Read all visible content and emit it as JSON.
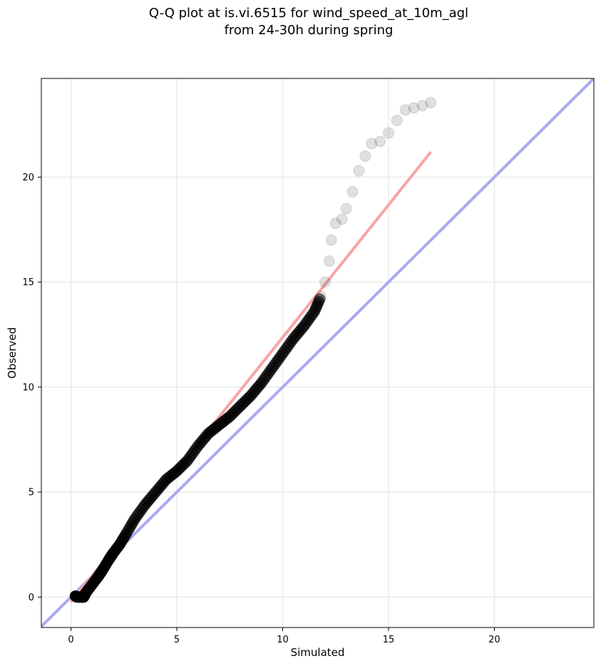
{
  "chart_data": {
    "type": "scatter",
    "title_line1": "Q-Q plot at is.vi.6515 for wind_speed_at_10m_agl",
    "title_line2": "from 24-30h during spring",
    "xlabel": "Simulated",
    "ylabel": "Observed",
    "xlim": [
      -1.4,
      24.7
    ],
    "ylim": [
      -1.45,
      24.7
    ],
    "xticks": [
      0,
      5,
      10,
      15,
      20
    ],
    "yticks": [
      0,
      5,
      10,
      15,
      20
    ],
    "grid": true,
    "colors": {
      "points": "#000000",
      "reference_line": "#aaaaf0",
      "fit_line": "#f7a5a5",
      "grid": "#ebebeb"
    },
    "reference_line": {
      "x": [
        -1.4,
        24.7
      ],
      "y": [
        -1.4,
        24.7
      ]
    },
    "fit_line": {
      "x": [
        0.0,
        17.0
      ],
      "y": [
        -0.25,
        21.2
      ]
    },
    "points_anchor": [
      [
        0.2,
        0.05
      ],
      [
        0.3,
        0.0
      ],
      [
        0.5,
        0.0
      ],
      [
        0.6,
        0.0
      ],
      [
        0.7,
        0.2
      ],
      [
        1.0,
        0.6
      ],
      [
        1.3,
        1.0
      ],
      [
        1.5,
        1.3
      ],
      [
        1.8,
        1.8
      ],
      [
        2.0,
        2.1
      ],
      [
        2.3,
        2.5
      ],
      [
        2.6,
        3.0
      ],
      [
        3.0,
        3.7
      ],
      [
        3.5,
        4.4
      ],
      [
        4.0,
        5.0
      ],
      [
        4.5,
        5.6
      ],
      [
        5.0,
        6.0
      ],
      [
        5.5,
        6.5
      ],
      [
        6.0,
        7.2
      ],
      [
        6.5,
        7.8
      ],
      [
        7.0,
        8.2
      ],
      [
        7.5,
        8.6
      ],
      [
        8.0,
        9.1
      ],
      [
        8.5,
        9.6
      ],
      [
        9.0,
        10.2
      ],
      [
        9.5,
        10.9
      ],
      [
        10.0,
        11.6
      ],
      [
        10.5,
        12.3
      ],
      [
        11.0,
        12.9
      ],
      [
        11.5,
        13.6
      ],
      [
        11.8,
        14.3
      ],
      [
        12.0,
        15.0
      ],
      [
        12.2,
        16.0
      ],
      [
        12.3,
        17.0
      ],
      [
        12.5,
        17.8
      ],
      [
        12.8,
        18.0
      ],
      [
        13.0,
        18.5
      ],
      [
        13.3,
        19.3
      ],
      [
        13.6,
        20.3
      ],
      [
        13.9,
        21.0
      ],
      [
        14.2,
        21.6
      ],
      [
        14.6,
        21.7
      ],
      [
        15.0,
        22.1
      ],
      [
        15.4,
        22.7
      ],
      [
        15.8,
        23.2
      ],
      [
        16.2,
        23.3
      ],
      [
        16.6,
        23.4
      ],
      [
        17.0,
        23.55
      ]
    ]
  }
}
